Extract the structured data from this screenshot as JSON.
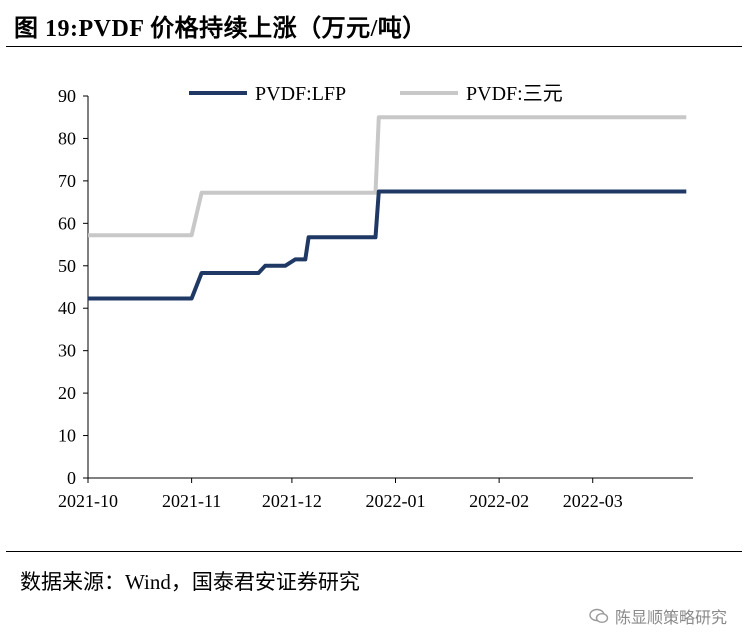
{
  "figure": {
    "title": "图 19:PVDF 价格持续上涨（万元/吨）",
    "source": "数据来源：Wind，国泰君安证券研究",
    "watermark": "陈显顺策略研究"
  },
  "chart_data": {
    "type": "line",
    "title": "",
    "xlabel": "",
    "ylabel": "",
    "ylim": [
      0,
      90
    ],
    "yticks": [
      0,
      10,
      20,
      30,
      40,
      50,
      60,
      70,
      80,
      90
    ],
    "xlim": [
      "2021-10-01",
      "2022-03-31"
    ],
    "xtick_labels": [
      {
        "date": "2021-10-01",
        "label": "2021-10"
      },
      {
        "date": "2021-11-01",
        "label": "2021-11"
      },
      {
        "date": "2021-12-01",
        "label": "2021-12"
      },
      {
        "date": "2022-01-01",
        "label": "2022-01"
      },
      {
        "date": "2022-02-01",
        "label": "2022-02"
      },
      {
        "date": "2022-03-01",
        "label": "2022-03"
      }
    ],
    "grid": false,
    "legend_position": "top",
    "series": [
      {
        "name": "PVDF:LFP",
        "color": "#1f3864",
        "points": [
          [
            "2021-10-01",
            42.3
          ],
          [
            "2021-11-01",
            42.3
          ],
          [
            "2021-11-04",
            48.3
          ],
          [
            "2021-11-21",
            48.3
          ],
          [
            "2021-11-23",
            50
          ],
          [
            "2021-11-29",
            50
          ],
          [
            "2021-12-02",
            51.5
          ],
          [
            "2021-12-05",
            51.5
          ],
          [
            "2021-12-06",
            56.7
          ],
          [
            "2021-12-26",
            56.7
          ],
          [
            "2021-12-27",
            67.5
          ],
          [
            "2022-03-29",
            67.5
          ]
        ]
      },
      {
        "name": "PVDF:三元",
        "color": "#c8c8c8",
        "points": [
          [
            "2021-10-01",
            57.2
          ],
          [
            "2021-11-01",
            57.2
          ],
          [
            "2021-11-04",
            67.2
          ],
          [
            "2021-12-26",
            67.2
          ],
          [
            "2021-12-27",
            85
          ],
          [
            "2022-03-29",
            85
          ]
        ]
      }
    ]
  }
}
